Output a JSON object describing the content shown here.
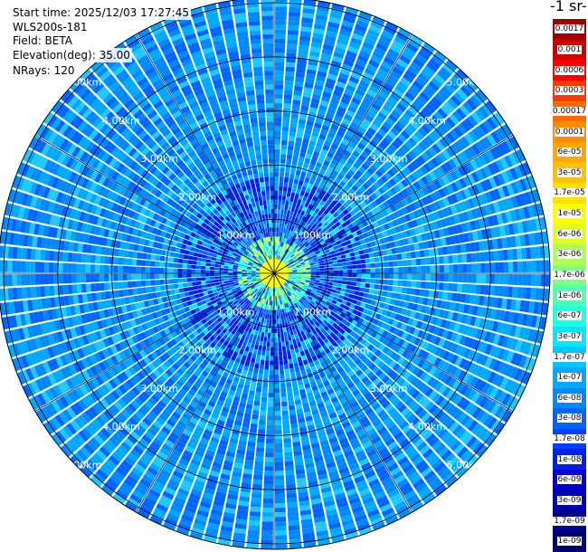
{
  "info": {
    "start_time": "Start time: 2025/12/03 17:27:45",
    "instrument": "WLS200s-181",
    "field": "Field: BETA",
    "elevation": "Elevation(deg): 35.00",
    "nrays": "NRays: 120"
  },
  "plot": {
    "type": "ppi",
    "n_rays": 120,
    "range_rings": [
      {
        "label": "1.00km",
        "km": 1.0
      },
      {
        "label": "2.00km",
        "km": 2.0
      },
      {
        "label": "3.00km",
        "km": 3.0
      },
      {
        "label": "4.00km",
        "km": 4.0
      },
      {
        "label": "5.00km",
        "km": 5.0
      }
    ],
    "max_range_km": 5.1
  },
  "colorbar": {
    "unit_label": "-1 sr-",
    "ticks": [
      "0.0017",
      "0.001",
      "0.0006",
      "0.0003",
      "0.00017",
      "0.0001",
      "6e-05",
      "3e-05",
      "1.7e-05",
      "1e-05",
      "6e-06",
      "3e-06",
      "1.7e-06",
      "1e-06",
      "6e-07",
      "3e-07",
      "1.7e-07",
      "1e-07",
      "6e-08",
      "3e-08",
      "1.7e-08",
      "1e-08",
      "6e-09",
      "3e-09",
      "1.7e-09",
      "1e-09"
    ],
    "colors": [
      "#a00000",
      "#d40000",
      "#ff0000",
      "#ff3a00",
      "#ff6a00",
      "#ff8c00",
      "#ffa600",
      "#ffc000",
      "#ffe000",
      "#ffff00",
      "#e0ff20",
      "#b0ff50",
      "#80ff80",
      "#50ffb0",
      "#20ffe0",
      "#00e8ff",
      "#00c8ff",
      "#00a8ff",
      "#0088ff",
      "#0064ff",
      "#0040ff",
      "#0020e8",
      "#0000d0",
      "#0000b0",
      "#000090",
      "#000070"
    ]
  }
}
